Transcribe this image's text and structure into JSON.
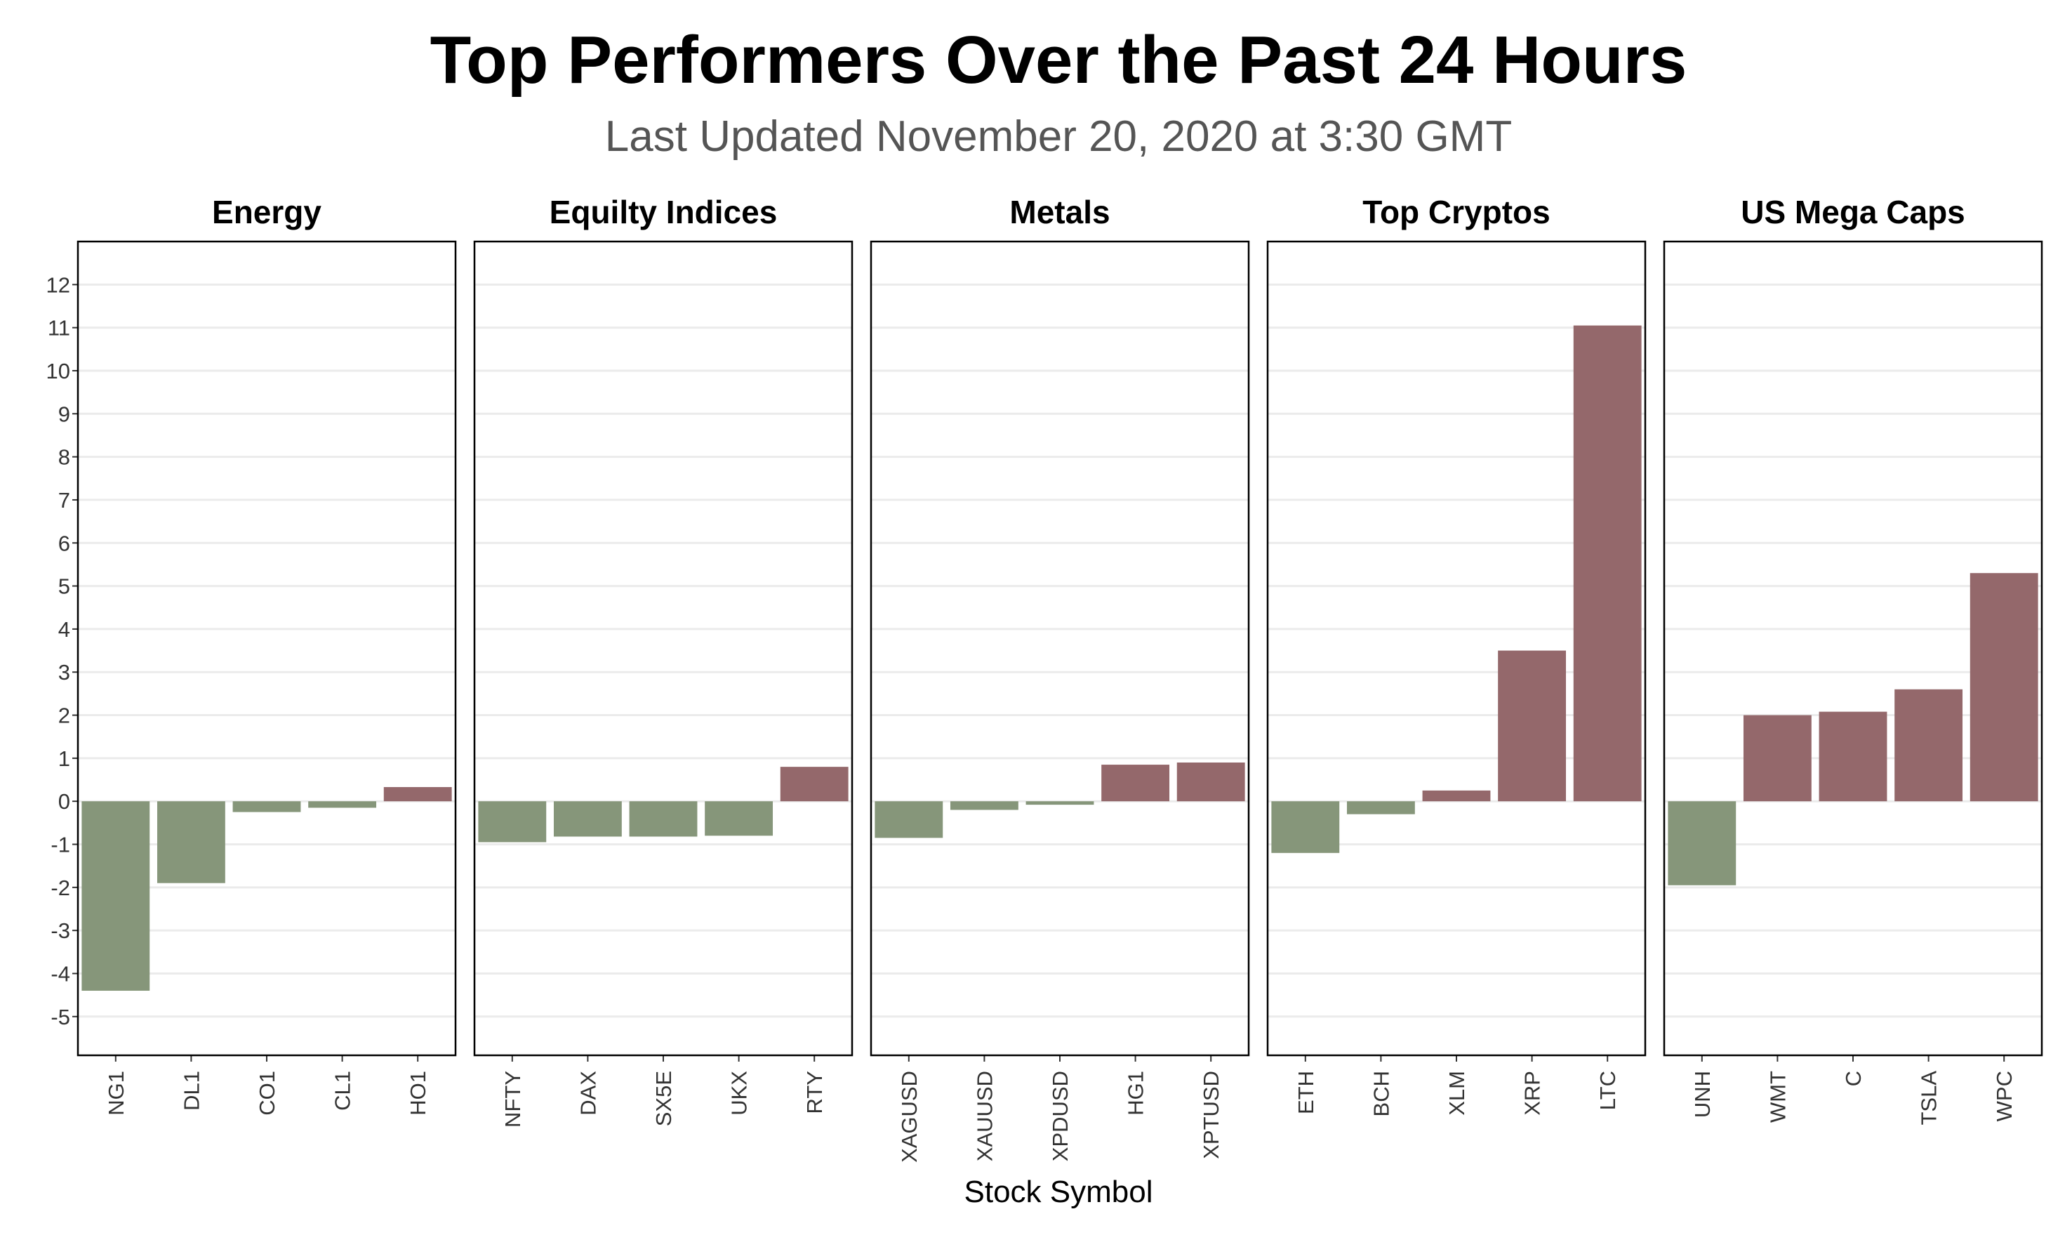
{
  "chart_data": {
    "type": "bar",
    "title": "Top Performers Over the Past 24 Hours",
    "subtitle": "Last Updated November 20, 2020 at 3:30 GMT",
    "xlabel": "Stock Symbol",
    "ylabel": "",
    "ylim": [
      -5.9,
      13.0
    ],
    "yticks": [
      -5,
      -4,
      -3,
      -2,
      -1,
      0,
      1,
      2,
      3,
      4,
      5,
      6,
      7,
      8,
      9,
      10,
      11,
      12
    ],
    "grid": true,
    "legend": "none",
    "colors": {
      "positive": "#94686B",
      "negative": "#86967A",
      "grid": "#EBEBEB",
      "frame": "#000000",
      "text": "#000000",
      "subtitle": "#555555",
      "tick": "#333333"
    },
    "facets": [
      {
        "name": "Energy",
        "categories": [
          "NG1",
          "DL1",
          "CO1",
          "CL1",
          "HO1"
        ],
        "values": [
          -4.4,
          -1.9,
          -0.25,
          -0.15,
          0.33
        ]
      },
      {
        "name": "Equilty Indices",
        "categories": [
          "NFTY",
          "DAX",
          "SX5E",
          "UKX",
          "RTY"
        ],
        "values": [
          -0.95,
          -0.82,
          -0.82,
          -0.8,
          0.8
        ]
      },
      {
        "name": "Metals",
        "categories": [
          "XAGUSD",
          "XAUUSD",
          "XPDUSD",
          "HG1",
          "XPTUSD"
        ],
        "values": [
          -0.85,
          -0.2,
          -0.08,
          0.85,
          0.9
        ]
      },
      {
        "name": "Top Cryptos",
        "categories": [
          "ETH",
          "BCH",
          "XLM",
          "XRP",
          "LTC"
        ],
        "values": [
          -1.2,
          -0.3,
          0.25,
          3.5,
          11.05
        ]
      },
      {
        "name": "US Mega Caps",
        "categories": [
          "UNH",
          "WMT",
          "C",
          "TSLA",
          "WPC"
        ],
        "values": [
          -1.95,
          2.0,
          2.08,
          2.6,
          5.3
        ]
      }
    ]
  }
}
